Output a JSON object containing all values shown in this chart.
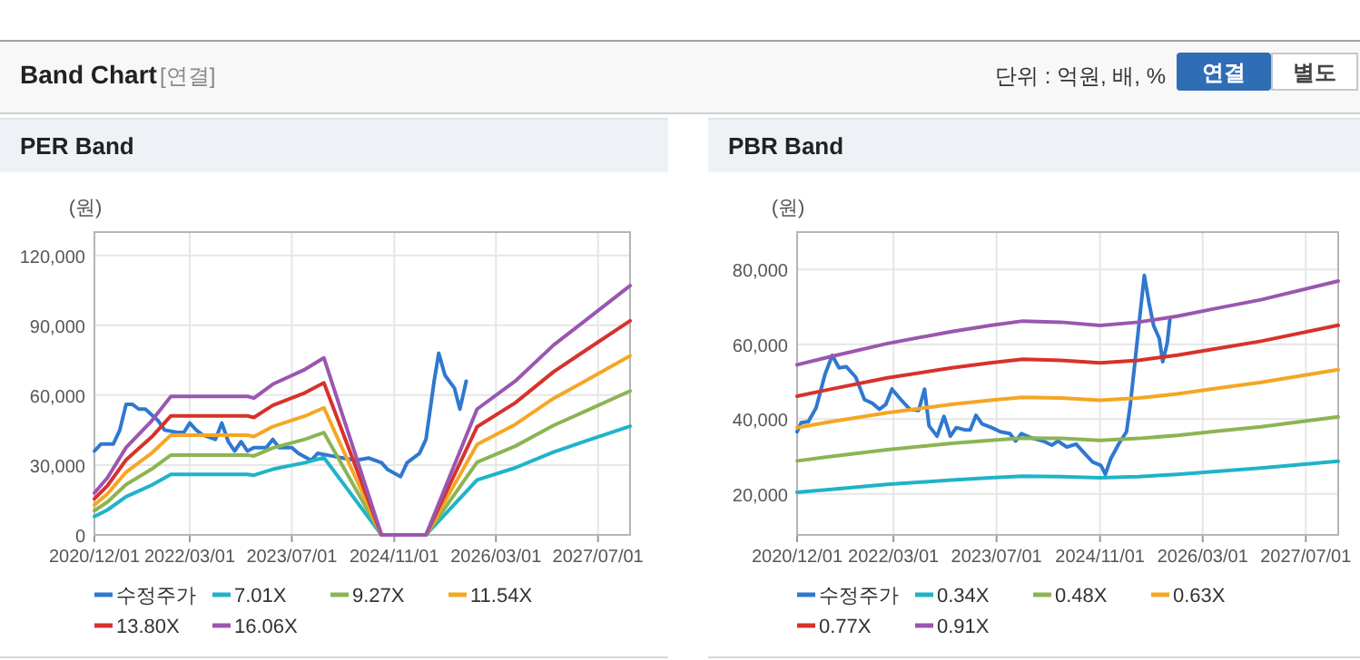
{
  "chart_data": [
    {
      "type": "other",
      "title": "Band Chart",
      "annotations": [
        "[연결]",
        "단위 : 억원, 배, %",
        "연결",
        "별도"
      ]
    },
    {
      "type": "line",
      "title": "PER Band",
      "ylabel": "(원)",
      "grid": true,
      "legend": "bottom",
      "marker": "none",
      "line_style": "solid",
      "xlim": [
        "2020-12-01",
        "2027-12-01"
      ],
      "xticks": [
        {
          "value": "2020-12-01",
          "label": "2020/12/01"
        },
        {
          "value": "2022-03-01",
          "label": "2022/03/01"
        },
        {
          "value": "2023-07-01",
          "label": "2023/07/01"
        },
        {
          "value": "2024-11-01",
          "label": "2024/11/01"
        },
        {
          "value": "2026-03-01",
          "label": "2026/03/01"
        },
        {
          "value": "2027-07-01",
          "label": "2027/07/01"
        }
      ],
      "ylim": [
        0,
        130000
      ],
      "yticks": [
        0,
        {
          "value": 30000,
          "label": "30,000"
        },
        {
          "value": 60000,
          "label": "60,000"
        },
        {
          "value": 90000,
          "label": "90,000"
        },
        {
          "value": 120000,
          "label": "120,000"
        }
      ],
      "series": [
        {
          "name": "수정주가",
          "color": "#2f78d0",
          "x": [
            "2020-12",
            "2021-01",
            "2021-03",
            "2021-04",
            "2021-05",
            "2021-06",
            "2021-07",
            "2021-08",
            "2021-10",
            "2021-11",
            "2022-01",
            "2022-02",
            "2022-03",
            "2022-04",
            "2022-05",
            "2022-07",
            "2022-08",
            "2022-09",
            "2022-10",
            "2022-11",
            "2022-12",
            "2023-01",
            "2023-03",
            "2023-04",
            "2023-05",
            "2023-07",
            "2023-08",
            "2023-10",
            "2023-11",
            "2024-01",
            "2024-03",
            "2024-05",
            "2024-07",
            "2024-09",
            "2024-10",
            "2024-12",
            "2025-01",
            "2025-03",
            "2025-04-01",
            "2025-04-20",
            "2025-05-10",
            "2025-06-01",
            "2025-07-01",
            "2025-08-15",
            "2025-09-10",
            "2025-10-10"
          ],
          "values": [
            36000,
            39000,
            39000,
            45000,
            56000,
            56000,
            54000,
            54000,
            49000,
            45000,
            44000,
            44000,
            48000,
            45000,
            43000,
            41000,
            48000,
            40000,
            36000,
            40000,
            36000,
            37500,
            37500,
            41000,
            37500,
            37500,
            35000,
            32000,
            35000,
            34000,
            33000,
            32000,
            33000,
            31000,
            28000,
            25000,
            31000,
            35000,
            41000,
            53000,
            66000,
            78000,
            68500,
            63000,
            54000,
            66000
          ]
        },
        {
          "name": "7.01X",
          "color": "#1fb3c8",
          "x": [
            "2020-12",
            "2021-02",
            "2021-05",
            "2021-09",
            "2021-12",
            "2022-12",
            "2023-01",
            "2023-04",
            "2023-09",
            "2023-12",
            "2024-09",
            "2025-04",
            "2025-12",
            "2026-06",
            "2026-12",
            "2027-05",
            "2027-12"
          ],
          "values": [
            7900,
            10700,
            16400,
            21400,
            26000,
            26000,
            25600,
            28200,
            31000,
            33200,
            0,
            0,
            23600,
            28800,
            35600,
            40200,
            46700
          ]
        },
        {
          "name": "9.27X",
          "color": "#8cb453",
          "x": [
            "2020-12",
            "2021-02",
            "2021-05",
            "2021-09",
            "2021-12",
            "2022-12",
            "2023-01",
            "2023-04",
            "2023-09",
            "2023-12",
            "2024-09",
            "2025-04",
            "2025-12",
            "2026-06",
            "2026-12",
            "2027-05",
            "2027-12"
          ],
          "values": [
            10400,
            14100,
            21600,
            28300,
            34300,
            34300,
            33900,
            37300,
            41000,
            43900,
            0,
            0,
            31200,
            38100,
            47000,
            53100,
            61800
          ]
        },
        {
          "name": "11.54X",
          "color": "#f5a623",
          "x": [
            "2020-12",
            "2021-02",
            "2021-05",
            "2021-09",
            "2021-12",
            "2022-12",
            "2023-01",
            "2023-04",
            "2023-09",
            "2023-12",
            "2024-09",
            "2025-04",
            "2025-12",
            "2026-06",
            "2026-12",
            "2027-05",
            "2027-12"
          ],
          "values": [
            12900,
            17600,
            26900,
            35200,
            42800,
            42800,
            42200,
            46500,
            51000,
            54600,
            0,
            0,
            38800,
            47400,
            58600,
            66100,
            76900
          ]
        },
        {
          "name": "13.80X",
          "color": "#d7322b",
          "x": [
            "2020-12",
            "2021-02",
            "2021-05",
            "2021-09",
            "2021-12",
            "2022-12",
            "2023-01",
            "2023-04",
            "2023-09",
            "2023-12",
            "2024-09",
            "2025-04",
            "2025-12",
            "2026-06",
            "2026-12",
            "2027-05",
            "2027-12"
          ],
          "values": [
            15500,
            21100,
            32200,
            42100,
            51100,
            51100,
            50400,
            55600,
            61000,
            65300,
            0,
            0,
            46400,
            56700,
            70000,
            79100,
            91900
          ]
        },
        {
          "name": "16.06X",
          "color": "#9a56b0",
          "x": [
            "2020-12",
            "2021-02",
            "2021-05",
            "2021-09",
            "2021-12",
            "2022-12",
            "2023-01",
            "2023-04",
            "2023-09",
            "2023-12",
            "2024-09",
            "2025-04",
            "2025-12",
            "2026-06",
            "2026-12",
            "2027-05",
            "2027-12"
          ],
          "values": [
            18000,
            24500,
            37500,
            49000,
            59500,
            59500,
            58700,
            64700,
            71000,
            76000,
            0,
            0,
            54000,
            66000,
            81500,
            92000,
            107000
          ]
        }
      ]
    },
    {
      "type": "line",
      "title": "PBR Band",
      "ylabel": "(원)",
      "grid": true,
      "legend": "bottom",
      "marker": "none",
      "line_style": "solid",
      "xlim": [
        "2020-12-01",
        "2027-12-01"
      ],
      "xticks": [
        {
          "value": "2020-12-01",
          "label": "2020/12/01"
        },
        {
          "value": "2022-03-01",
          "label": "2022/03/01"
        },
        {
          "value": "2023-07-01",
          "label": "2023/07/01"
        },
        {
          "value": "2024-11-01",
          "label": "2024/11/01"
        },
        {
          "value": "2026-03-01",
          "label": "2026/03/01"
        },
        {
          "value": "2027-07-01",
          "label": "2027/07/01"
        }
      ],
      "ylim": [
        9000,
        90000
      ],
      "yticks": [
        {
          "value": 20000,
          "label": "20,000"
        },
        {
          "value": 40000,
          "label": "40,000"
        },
        {
          "value": 60000,
          "label": "60,000"
        },
        {
          "value": 80000,
          "label": "80,000"
        }
      ],
      "series": [
        {
          "name": "수정주가",
          "color": "#2f78d0",
          "x": [
            "2020-12-01",
            "2020-12-20",
            "2021-01-23",
            "2021-03-01",
            "2021-04-12",
            "2021-05-16",
            "2021-06-17",
            "2021-07-21",
            "2021-09-04",
            "2021-10-15",
            "2021-11-22",
            "2021-12-25",
            "2022-01-24",
            "2022-02-22",
            "2022-04-05",
            "2022-05-17",
            "2022-06-28",
            "2022-07-26",
            "2022-08-16",
            "2022-09-23",
            "2022-10-26",
            "2022-11-25",
            "2022-12-23",
            "2023-02-01",
            "2023-02-27",
            "2023-03-26",
            "2023-04-24",
            "2023-06-08",
            "2023-07-19",
            "2023-09-02",
            "2023-09-29",
            "2023-10-27",
            "2023-12-10",
            "2024-02-07",
            "2024-03-18",
            "2024-04-16",
            "2024-05-28",
            "2024-07-11",
            "2024-08-23",
            "2024-09-27",
            "2024-11-05",
            "2024-11-26",
            "2024-12-21",
            "2025-01-28",
            "2025-03-06",
            "2025-03-24",
            "2025-04-15",
            "2025-05-08",
            "2025-05-29",
            "2025-06-19",
            "2025-07-12",
            "2025-08-08",
            "2025-08-24",
            "2025-09-14",
            "2025-09-27"
          ],
          "values": [
            36600,
            39000,
            39300,
            43000,
            52000,
            57000,
            53700,
            54000,
            51200,
            45200,
            44200,
            42600,
            43900,
            48000,
            45200,
            42600,
            42300,
            48000,
            38200,
            35400,
            40700,
            35400,
            37700,
            37100,
            37100,
            41000,
            38700,
            37700,
            36600,
            36100,
            34100,
            36100,
            35000,
            34100,
            33000,
            34100,
            32500,
            33300,
            30600,
            28500,
            27600,
            25200,
            29300,
            33300,
            36600,
            43900,
            55300,
            67500,
            78400,
            71500,
            65000,
            61500,
            55300,
            60200,
            66700
          ]
        },
        {
          "name": "0.34X",
          "color": "#1fb3c8",
          "x": [
            "2020-12",
            "2021-05",
            "2022-02",
            "2022-12",
            "2023-06",
            "2023-11",
            "2024-05",
            "2024-11",
            "2025-05",
            "2025-11",
            "2026-06",
            "2026-12",
            "2027-12"
          ],
          "values": [
            20400,
            21100,
            22500,
            23700,
            24300,
            24700,
            24600,
            24300,
            24600,
            25200,
            26100,
            26900,
            28700
          ]
        },
        {
          "name": "0.48X",
          "color": "#8cb453",
          "x": [
            "2020-12",
            "2021-05",
            "2022-02",
            "2022-12",
            "2023-06",
            "2023-11",
            "2024-05",
            "2024-11",
            "2025-05",
            "2025-11",
            "2026-06",
            "2026-12",
            "2027-12"
          ],
          "values": [
            28800,
            29900,
            31800,
            33500,
            34300,
            34900,
            34800,
            34300,
            34800,
            35600,
            36900,
            37900,
            40600
          ]
        },
        {
          "name": "0.63X",
          "color": "#f5a623",
          "x": [
            "2020-12",
            "2021-05",
            "2022-02",
            "2022-12",
            "2023-06",
            "2023-11",
            "2024-05",
            "2024-11",
            "2025-05",
            "2025-11",
            "2026-06",
            "2026-12",
            "2027-12"
          ],
          "values": [
            37700,
            39200,
            41700,
            43900,
            45000,
            45800,
            45600,
            45000,
            45600,
            46700,
            48400,
            49800,
            53200
          ]
        },
        {
          "name": "0.77X",
          "color": "#d7322b",
          "x": [
            "2020-12",
            "2021-05",
            "2022-02",
            "2022-12",
            "2023-06",
            "2023-11",
            "2024-05",
            "2024-11",
            "2025-05",
            "2025-11",
            "2026-06",
            "2026-12",
            "2027-12"
          ],
          "values": [
            46100,
            47900,
            51000,
            53700,
            55000,
            56000,
            55700,
            55000,
            55700,
            57100,
            59100,
            60800,
            65100
          ]
        },
        {
          "name": "0.91X",
          "color": "#9a56b0",
          "x": [
            "2020-12",
            "2021-05",
            "2022-02",
            "2022-12",
            "2023-06",
            "2023-11",
            "2024-05",
            "2024-11",
            "2025-05",
            "2025-11",
            "2026-06",
            "2026-12",
            "2027-12"
          ],
          "values": [
            54500,
            56600,
            60200,
            63400,
            65000,
            66200,
            65900,
            65000,
            65900,
            67500,
            69900,
            71900,
            76900
          ]
        }
      ]
    }
  ]
}
